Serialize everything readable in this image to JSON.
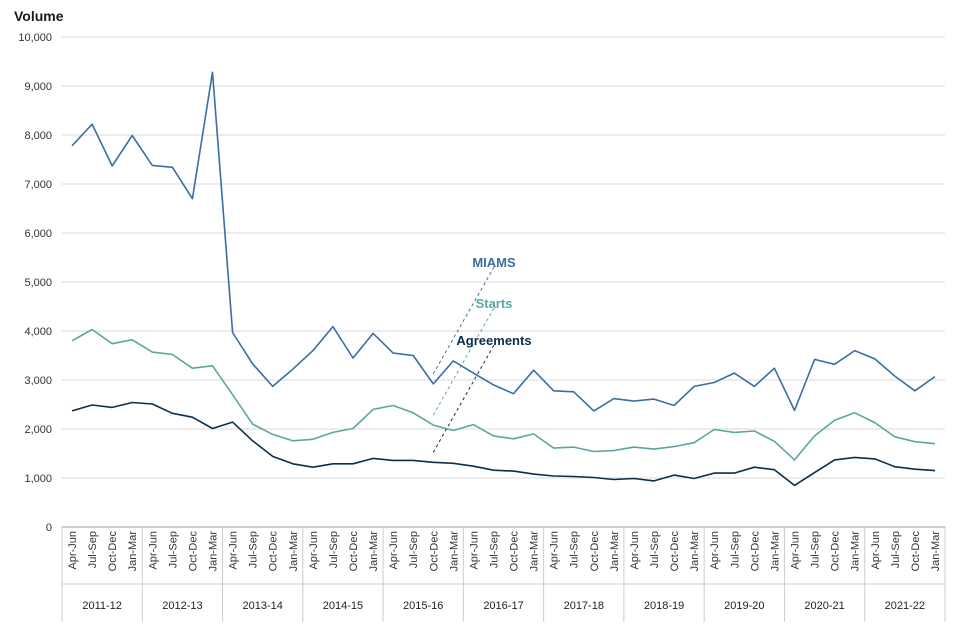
{
  "chart_data": {
    "type": "line",
    "ylabel": "Volume",
    "ylim": [
      0,
      10000
    ],
    "yticks": [
      0,
      1000,
      2000,
      3000,
      4000,
      5000,
      6000,
      7000,
      8000,
      9000,
      10000
    ],
    "ytick_labels": [
      "0",
      "1,000",
      "2,000",
      "3,000",
      "4,000",
      "5,000",
      "6,000",
      "7,000",
      "8,000",
      "9,000",
      "10,000"
    ],
    "grid": true,
    "quarters": [
      "Apr-Jun",
      "Jul-Sep",
      "Oct-Dec",
      "Jan-Mar"
    ],
    "years": [
      "2011-12",
      "2012-13",
      "2013-14",
      "2014-15",
      "2015-16",
      "2016-17",
      "2017-18",
      "2018-19",
      "2019-20",
      "2020-21",
      "2021-22"
    ],
    "series": [
      {
        "name": "MIAMS",
        "color": "#3a6ea5",
        "values": [
          7780,
          8220,
          7370,
          7990,
          7380,
          7340,
          6700,
          9280,
          3970,
          3330,
          2870,
          3220,
          3600,
          4090,
          3450,
          3950,
          3550,
          3500,
          2920,
          3390,
          3140,
          2900,
          2720,
          3200,
          2780,
          2760,
          2370,
          2620,
          2570,
          2610,
          2480,
          2870,
          2950,
          3140,
          2870,
          3240,
          2380,
          3420,
          3320,
          3600,
          3430,
          3080,
          2780,
          3070
        ]
      },
      {
        "name": "Starts",
        "color": "#5ba7a0",
        "values": [
          3800,
          4030,
          3740,
          3820,
          3570,
          3520,
          3240,
          3290,
          2700,
          2100,
          1890,
          1760,
          1790,
          1930,
          2010,
          2400,
          2480,
          2330,
          2080,
          1970,
          2090,
          1860,
          1800,
          1900,
          1610,
          1630,
          1540,
          1560,
          1630,
          1590,
          1640,
          1720,
          1990,
          1930,
          1960,
          1750,
          1370,
          1860,
          2180,
          2330,
          2130,
          1840,
          1740,
          1700
        ]
      },
      {
        "name": "Agreements",
        "color": "#0b2e4f",
        "values": [
          2370,
          2490,
          2440,
          2540,
          2510,
          2320,
          2240,
          2010,
          2140,
          1760,
          1440,
          1290,
          1220,
          1290,
          1290,
          1400,
          1360,
          1360,
          1320,
          1300,
          1240,
          1160,
          1140,
          1080,
          1040,
          1030,
          1010,
          970,
          990,
          940,
          1060,
          990,
          1100,
          1100,
          1220,
          1170,
          850,
          1110,
          1370,
          1420,
          1390,
          1230,
          1180,
          1150
        ]
      }
    ]
  }
}
